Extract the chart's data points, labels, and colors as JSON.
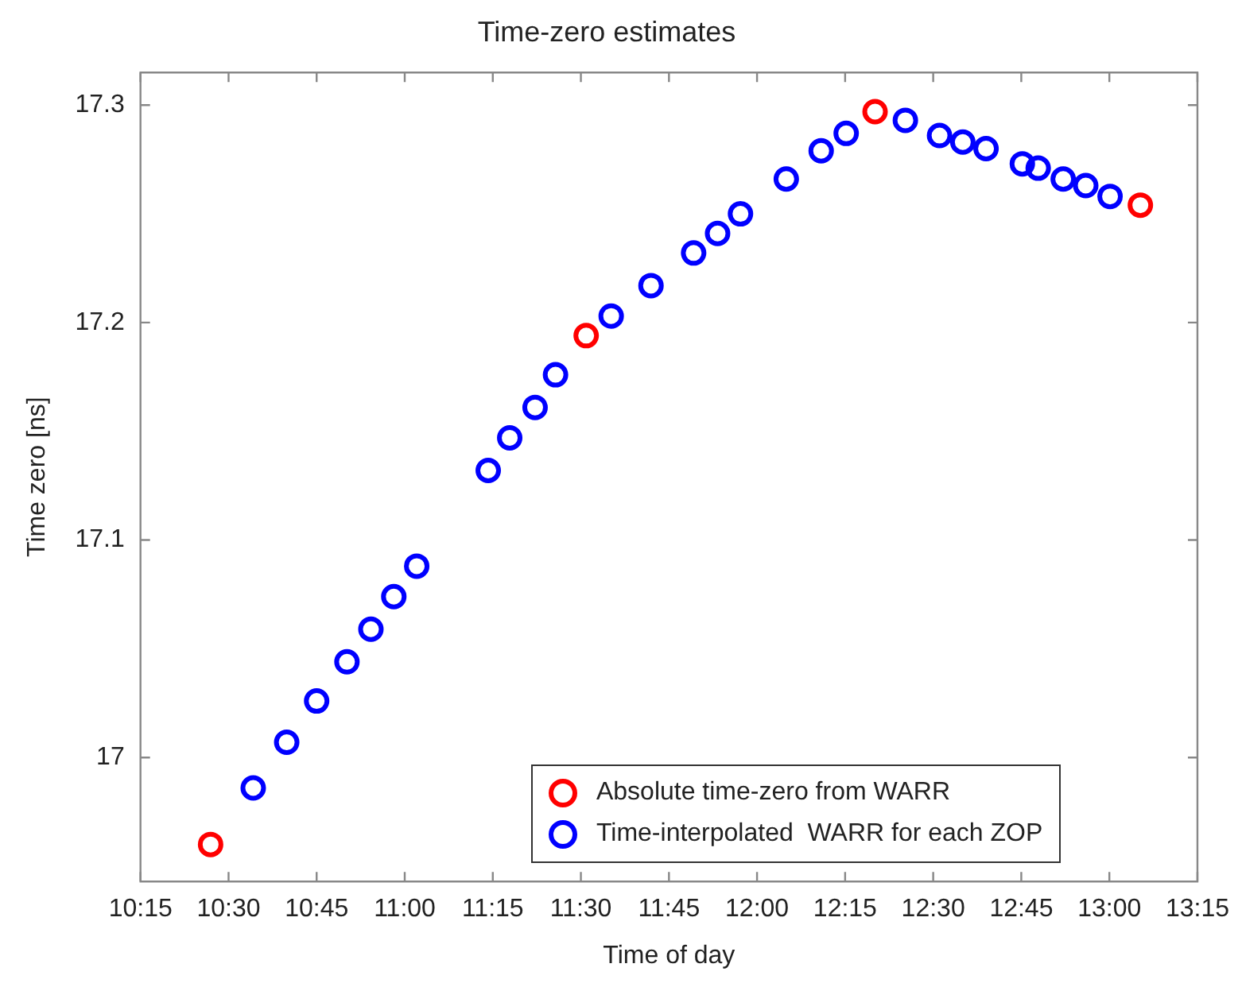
{
  "chart_data": {
    "type": "scatter",
    "title": "Time-zero estimates",
    "xlabel": "Time of day",
    "ylabel": "Time zero [ns]",
    "xlim": [
      10.25,
      13.25
    ],
    "xticks": [
      {
        "value": 10.25,
        "label": "10:15"
      },
      {
        "value": 10.5,
        "label": "10:30"
      },
      {
        "value": 10.75,
        "label": "10:45"
      },
      {
        "value": 11,
        "label": "11:00"
      },
      {
        "value": 11.25,
        "label": "11:15"
      },
      {
        "value": 11.5,
        "label": "11:30"
      },
      {
        "value": 11.75,
        "label": "11:45"
      },
      {
        "value": 12,
        "label": "12:00"
      },
      {
        "value": 12.25,
        "label": "12:15"
      },
      {
        "value": 12.5,
        "label": "12:30"
      },
      {
        "value": 12.75,
        "label": "12:45"
      },
      {
        "value": 13,
        "label": "13:00"
      },
      {
        "value": 13.25,
        "label": "13:15"
      }
    ],
    "ylim": [
      16.943,
      17.315
    ],
    "yticks": [
      17,
      17.1,
      17.2,
      17.3
    ],
    "marker": "circle",
    "legend": "bottom right",
    "grid": false,
    "series": [
      {
        "name": "Absolute time-zero from WARR",
        "color": "#ff0000",
        "x": [
          10.449,
          11.515,
          12.335,
          13.088
        ],
        "values": [
          16.96,
          17.194,
          17.297,
          17.254
        ]
      },
      {
        "name": "Time-interpolated  WARR for each ZOP",
        "color": "#0000ff",
        "x": [
          10.57,
          10.665,
          10.75,
          10.836,
          10.904,
          10.969,
          11.034,
          11.237,
          11.298,
          11.37,
          11.428,
          11.586,
          11.699,
          11.82,
          11.888,
          11.953,
          12.083,
          12.182,
          12.253,
          12.421,
          12.518,
          12.584,
          12.65,
          12.753,
          12.798,
          12.869,
          12.933,
          13.002
        ],
        "values": [
          16.986,
          17.007,
          17.026,
          17.044,
          17.059,
          17.074,
          17.088,
          17.132,
          17.147,
          17.161,
          17.176,
          17.203,
          17.217,
          17.232,
          17.241,
          17.25,
          17.266,
          17.279,
          17.287,
          17.293,
          17.286,
          17.283,
          17.28,
          17.273,
          17.271,
          17.266,
          17.263,
          17.258
        ]
      }
    ]
  }
}
